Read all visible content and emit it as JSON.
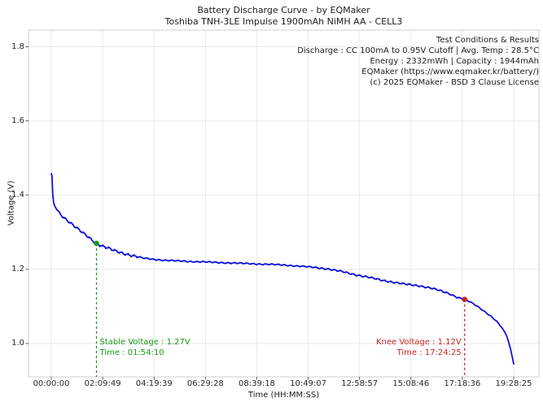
{
  "title": "Battery Discharge Curve - by EQMaker",
  "subtitle": "Toshiba TNH-3LE Impulse 1900mAh NiMH AA - CELL3",
  "info_box": {
    "title": "Test Conditions & Results",
    "line1": "Discharge : CC 100mA to 0.95V Cutoff | Avg. Temp : 28.5°C",
    "line2": "Energy : 2332mWh | Capacity : 1944mAh",
    "line3": "EQMaker (https://www.eqmaker.kr/battery/)",
    "line4": "(c) 2025 EQMaker - BSD 3 Clause License"
  },
  "annotations": {
    "stable": {
      "line1": "Stable Voltage : 1.27V",
      "line2": "Time : 01:54:10",
      "time_seconds": 6850,
      "voltage": 1.27,
      "color": "#189918"
    },
    "knee": {
      "line1": "Knee Voltage : 1.12V",
      "line2": "Time : 17:24:25",
      "time_seconds": 62665,
      "voltage": 1.119,
      "color": "#cc2222"
    }
  },
  "chart_data": {
    "type": "line",
    "title": "Battery Discharge Curve - by EQMaker",
    "subtitle": "Toshiba TNH-3LE Impulse 1900mAh NiMH AA - CELL3",
    "xlabel": "Time (HH:MM:SS)",
    "ylabel": "Voltage (V)",
    "grid": true,
    "line_color": "#0808e0",
    "grid_color": "#e8e8e8",
    "spine_color": "#cfcfcf",
    "x_axis_range_seconds": [
      -3460,
      73930
    ],
    "y_axis_range_volts": [
      0.91,
      1.845
    ],
    "x_ticks": [
      {
        "seconds": 0,
        "label": "00:00:00"
      },
      {
        "seconds": 7789,
        "label": "02:09:49"
      },
      {
        "seconds": 15579,
        "label": "04:19:39"
      },
      {
        "seconds": 23368,
        "label": "06:29:28"
      },
      {
        "seconds": 31158,
        "label": "08:39:18"
      },
      {
        "seconds": 38947,
        "label": "10:49:07"
      },
      {
        "seconds": 46737,
        "label": "12:58:57"
      },
      {
        "seconds": 54526,
        "label": "15:08:46"
      },
      {
        "seconds": 62316,
        "label": "17:18:36"
      },
      {
        "seconds": 70105,
        "label": "19:28:25"
      }
    ],
    "y_ticks": [
      {
        "volts": 1.0,
        "label": "1.0"
      },
      {
        "volts": 1.2,
        "label": "1.2"
      },
      {
        "volts": 1.4,
        "label": "1.4"
      },
      {
        "volts": 1.6,
        "label": "1.6"
      },
      {
        "volts": 1.8,
        "label": "1.8"
      }
    ],
    "series": [
      {
        "name": "CELL3 discharge voltage",
        "points_time_s_voltage_v": [
          [
            0,
            1.458
          ],
          [
            100,
            1.456
          ],
          [
            250,
            1.388
          ],
          [
            450,
            1.374
          ],
          [
            800,
            1.363
          ],
          [
            1300,
            1.351
          ],
          [
            2000,
            1.338
          ],
          [
            2800,
            1.326
          ],
          [
            3600,
            1.314
          ],
          [
            4600,
            1.301
          ],
          [
            5700,
            1.287
          ],
          [
            6850,
            1.27
          ],
          [
            7600,
            1.263
          ],
          [
            8700,
            1.256
          ],
          [
            9800,
            1.249
          ],
          [
            11000,
            1.243
          ],
          [
            12500,
            1.236
          ],
          [
            14000,
            1.23
          ],
          [
            15500,
            1.227
          ],
          [
            17500,
            1.224
          ],
          [
            20000,
            1.222
          ],
          [
            23000,
            1.22
          ],
          [
            26000,
            1.218
          ],
          [
            29000,
            1.216
          ],
          [
            32000,
            1.214
          ],
          [
            35000,
            1.212
          ],
          [
            38000,
            1.208
          ],
          [
            40000,
            1.205
          ],
          [
            42000,
            1.201
          ],
          [
            44000,
            1.194
          ],
          [
            46000,
            1.186
          ],
          [
            48000,
            1.179
          ],
          [
            50000,
            1.171
          ],
          [
            52000,
            1.165
          ],
          [
            54000,
            1.159
          ],
          [
            56000,
            1.155
          ],
          [
            57500,
            1.15
          ],
          [
            59000,
            1.142
          ],
          [
            60500,
            1.133
          ],
          [
            61700,
            1.124
          ],
          [
            62665,
            1.119
          ],
          [
            63500,
            1.112
          ],
          [
            64700,
            1.099
          ],
          [
            65700,
            1.086
          ],
          [
            66650,
            1.074
          ],
          [
            67400,
            1.062
          ],
          [
            67900,
            1.052
          ],
          [
            68400,
            1.04
          ],
          [
            68800,
            1.029
          ],
          [
            69100,
            1.018
          ],
          [
            69400,
            0.999
          ],
          [
            69700,
            0.979
          ],
          [
            69950,
            0.959
          ],
          [
            70105,
            0.945
          ]
        ]
      }
    ]
  }
}
